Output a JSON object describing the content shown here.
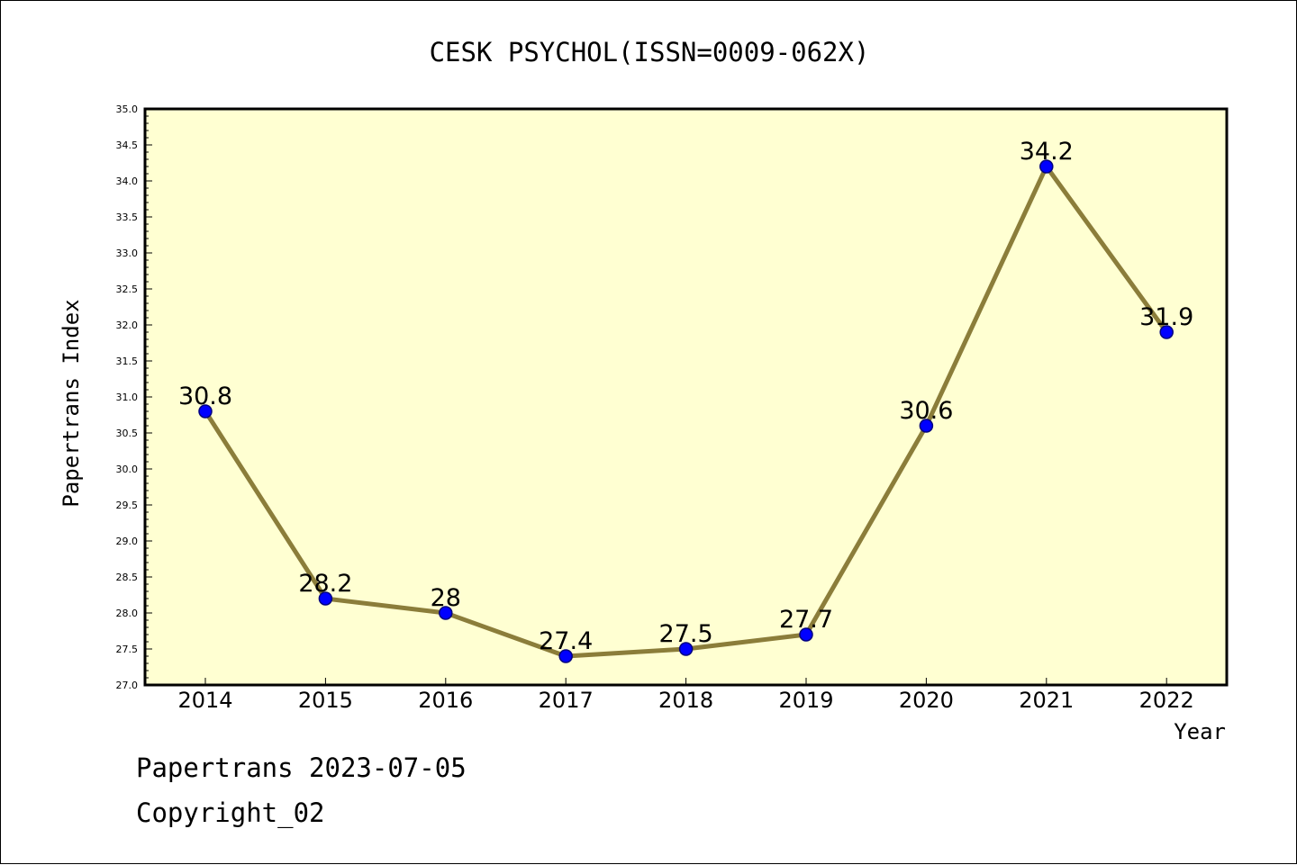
{
  "chart_data": {
    "type": "line",
    "title": "CESK PSYCHOL(ISSN=0009-062X)",
    "xlabel": "Year",
    "ylabel": "Papertrans Index",
    "x": [
      "2014",
      "2015",
      "2016",
      "2017",
      "2018",
      "2019",
      "2020",
      "2021",
      "2022"
    ],
    "values": [
      30.8,
      28.2,
      28.0,
      27.4,
      27.5,
      27.7,
      30.6,
      34.2,
      31.9
    ],
    "data_labels": [
      "30.8",
      "28.2",
      "28",
      "27.4",
      "27.5",
      "27.7",
      "30.6",
      "34.2",
      "31.9"
    ],
    "ylim": [
      27.0,
      35.0
    ],
    "yticks": [
      "27.0",
      "27.5",
      "28.0",
      "28.5",
      "29.0",
      "29.5",
      "30.0",
      "30.5",
      "31.0",
      "31.5",
      "32.0",
      "32.5",
      "33.0",
      "33.5",
      "34.0",
      "34.5",
      "35.0"
    ],
    "grid": false,
    "colors": {
      "plot_background": "#ffffd2",
      "line": "#8b7d3a",
      "marker_fill": "#0000ff",
      "marker_edge": "#000080"
    }
  },
  "footer": {
    "line1": "Papertrans 2023-07-05",
    "line2": "Copyright_02"
  }
}
